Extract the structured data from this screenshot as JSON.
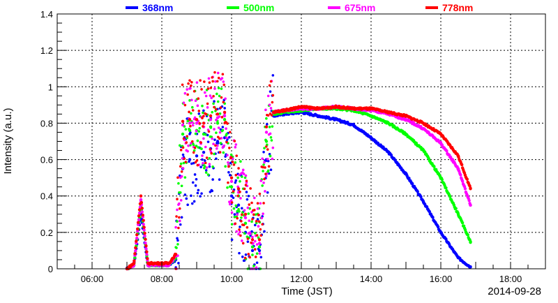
{
  "chart_data": {
    "type": "scatter",
    "xlabel": "Time (JST)",
    "ylabel": "Intensity (a.u.)",
    "date_label": "2014-09-28",
    "x_unit": "hours (JST)",
    "xlim": [
      5.0,
      19.0
    ],
    "ylim": [
      0,
      1.4
    ],
    "grid": true,
    "legend_position": "top",
    "x_ticks": [
      {
        "value": 6,
        "label": "06:00"
      },
      {
        "value": 8,
        "label": "08:00"
      },
      {
        "value": 10,
        "label": "10:00"
      },
      {
        "value": 12,
        "label": "12:00"
      },
      {
        "value": 14,
        "label": "14:00"
      },
      {
        "value": 16,
        "label": "16:00"
      },
      {
        "value": 18,
        "label": "18:00"
      }
    ],
    "y_ticks": [
      {
        "value": 0,
        "label": "0"
      },
      {
        "value": 0.2,
        "label": "0.2"
      },
      {
        "value": 0.4,
        "label": "0.4"
      },
      {
        "value": 0.6,
        "label": "0.6"
      },
      {
        "value": 0.8,
        "label": "0.8"
      },
      {
        "value": 1.0,
        "label": "1"
      },
      {
        "value": 1.2,
        "label": "1.2"
      },
      {
        "value": 1.4,
        "label": "1.4"
      }
    ],
    "series": [
      {
        "name": "368nm",
        "color": "#0000ff",
        "x": [
          7.0,
          7.2,
          7.4,
          7.6,
          7.8,
          8.0,
          8.2,
          8.4,
          8.6,
          8.8,
          9.0,
          9.2,
          9.4,
          9.6,
          9.8,
          10.0,
          10.2,
          10.4,
          10.6,
          10.8,
          11.0,
          11.2,
          11.5,
          12.0,
          12.5,
          13.0,
          13.5,
          14.0,
          14.5,
          15.0,
          15.5,
          16.0,
          16.5,
          16.85
        ],
        "y": [
          0.0,
          0.02,
          0.3,
          0.02,
          0.02,
          0.02,
          0.02,
          0.05,
          0.55,
          0.6,
          0.62,
          0.64,
          0.66,
          0.7,
          0.72,
          0.4,
          0.35,
          0.2,
          0.1,
          0.1,
          0.6,
          0.84,
          0.85,
          0.86,
          0.84,
          0.82,
          0.79,
          0.72,
          0.64,
          0.52,
          0.37,
          0.2,
          0.06,
          0.01
        ]
      },
      {
        "name": "500nm",
        "color": "#00ff00",
        "x": [
          7.0,
          7.2,
          7.4,
          7.6,
          7.8,
          8.0,
          8.2,
          8.4,
          8.6,
          8.8,
          9.0,
          9.2,
          9.4,
          9.6,
          9.8,
          10.0,
          10.2,
          10.4,
          10.6,
          10.8,
          11.0,
          11.2,
          11.5,
          12.0,
          12.5,
          13.0,
          13.5,
          14.0,
          14.5,
          15.0,
          15.5,
          16.0,
          16.5,
          16.85
        ],
        "y": [
          0.0,
          0.02,
          0.35,
          0.02,
          0.02,
          0.02,
          0.02,
          0.06,
          0.74,
          0.76,
          0.76,
          0.74,
          0.78,
          0.8,
          0.82,
          0.45,
          0.4,
          0.25,
          0.12,
          0.12,
          0.7,
          0.85,
          0.86,
          0.87,
          0.88,
          0.88,
          0.87,
          0.84,
          0.8,
          0.74,
          0.65,
          0.5,
          0.3,
          0.15
        ]
      },
      {
        "name": "675nm",
        "color": "#ff00ff",
        "x": [
          7.0,
          7.2,
          7.4,
          7.6,
          7.8,
          8.0,
          8.2,
          8.4,
          8.6,
          8.8,
          9.0,
          9.2,
          9.4,
          9.6,
          9.8,
          10.0,
          10.2,
          10.4,
          10.6,
          10.8,
          11.0,
          11.2,
          11.5,
          12.0,
          12.5,
          13.0,
          13.5,
          14.0,
          14.5,
          15.0,
          15.5,
          16.0,
          16.5,
          16.85
        ],
        "y": [
          0.0,
          0.02,
          0.38,
          0.02,
          0.02,
          0.02,
          0.02,
          0.07,
          0.79,
          0.8,
          0.8,
          0.78,
          0.82,
          0.83,
          0.84,
          0.48,
          0.42,
          0.28,
          0.14,
          0.14,
          0.75,
          0.86,
          0.87,
          0.88,
          0.88,
          0.89,
          0.88,
          0.87,
          0.85,
          0.82,
          0.77,
          0.69,
          0.55,
          0.35
        ]
      },
      {
        "name": "778nm",
        "color": "#ff0000",
        "x": [
          7.0,
          7.2,
          7.4,
          7.6,
          7.8,
          8.0,
          8.2,
          8.4,
          8.6,
          8.8,
          9.0,
          9.2,
          9.4,
          9.6,
          9.8,
          10.0,
          10.2,
          10.4,
          10.6,
          10.8,
          11.0,
          11.2,
          11.5,
          12.0,
          12.5,
          13.0,
          13.5,
          14.0,
          14.5,
          15.0,
          15.5,
          16.0,
          16.5,
          16.85
        ],
        "y": [
          0.0,
          0.03,
          0.4,
          0.03,
          0.03,
          0.03,
          0.03,
          0.08,
          0.81,
          0.82,
          0.82,
          0.8,
          0.84,
          0.85,
          0.86,
          0.5,
          0.44,
          0.3,
          0.16,
          0.16,
          0.78,
          0.86,
          0.87,
          0.89,
          0.88,
          0.89,
          0.88,
          0.88,
          0.86,
          0.84,
          0.8,
          0.74,
          0.62,
          0.44
        ]
      }
    ]
  }
}
